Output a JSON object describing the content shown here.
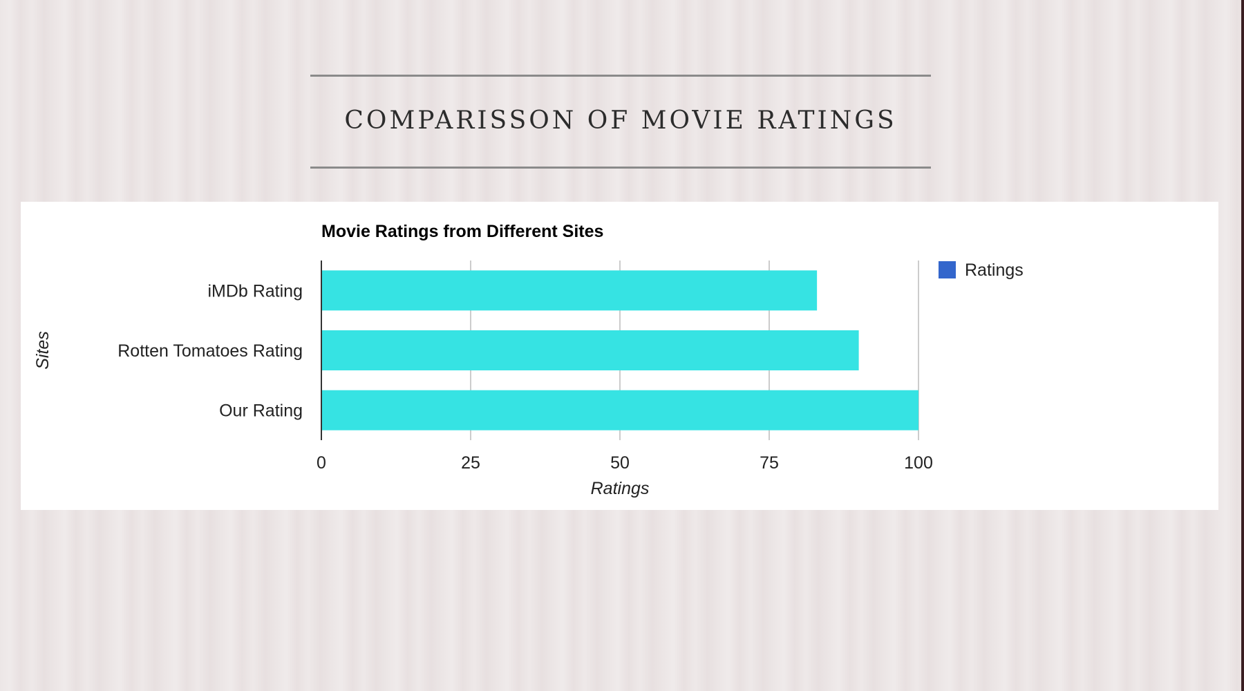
{
  "slide": {
    "title": "COMPARISSON OF MOVIE RATINGS"
  },
  "chart_data": {
    "type": "bar",
    "orientation": "horizontal",
    "title": "Movie Ratings from Different Sites",
    "categories": [
      "iMDb Rating",
      "Rotten Tomatoes Rating",
      "Our Rating"
    ],
    "series": [
      {
        "name": "Ratings",
        "values": [
          83,
          90,
          100
        ],
        "color": "#36e3e3"
      }
    ],
    "legend": {
      "label": "Ratings",
      "swatch_color": "#3366cc",
      "position": "right"
    },
    "xlabel": "Ratings",
    "ylabel": "Sites",
    "xlim": [
      0,
      100
    ],
    "xticks": [
      0,
      25,
      50,
      75,
      100
    ],
    "grid": true
  },
  "colors": {
    "bar": "#36e3e3",
    "legend_swatch": "#3366cc",
    "gridline": "#cccccc",
    "axis": "#333333"
  }
}
